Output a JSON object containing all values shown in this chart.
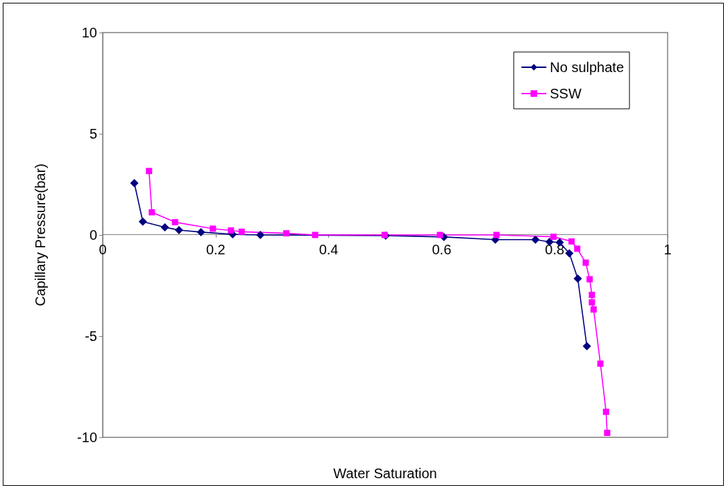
{
  "chart_data": {
    "type": "line",
    "xlabel": "Water Saturation",
    "ylabel": "Capillary Pressure(bar)",
    "xlim": [
      0,
      1
    ],
    "xticks": [
      0,
      0.2,
      0.4,
      0.6,
      0.8,
      1
    ],
    "ylim": [
      -10,
      10
    ],
    "yticks": [
      -10,
      -5,
      0,
      5,
      10
    ],
    "grid": false,
    "legend": "top right",
    "series": [
      {
        "name": "No sulphate",
        "color": "#000080",
        "marker": "diamond",
        "x": [
          0.056,
          0.071,
          0.11,
          0.135,
          0.174,
          0.23,
          0.279,
          0.501,
          0.604,
          0.695,
          0.766,
          0.791,
          0.809,
          0.826,
          0.841,
          0.857
        ],
        "values": [
          2.56,
          0.66,
          0.38,
          0.24,
          0.14,
          0.03,
          0,
          -0.03,
          -0.1,
          -0.23,
          -0.23,
          -0.34,
          -0.37,
          -0.91,
          -2.16,
          -5.5
        ]
      },
      {
        "name": "SSW",
        "color": "#ff00ff",
        "marker": "square",
        "x": [
          0.082,
          0.087,
          0.128,
          0.195,
          0.227,
          0.246,
          0.325,
          0.376,
          0.499,
          0.597,
          0.697,
          0.798,
          0.83,
          0.84,
          0.855,
          0.862,
          0.866,
          0.866,
          0.869,
          0.881,
          0.891,
          0.893
        ],
        "values": [
          3.16,
          1.12,
          0.63,
          0.31,
          0.22,
          0.16,
          0.08,
          0,
          0,
          0,
          0,
          -0.09,
          -0.32,
          -0.68,
          -1.37,
          -2.19,
          -2.96,
          -3.33,
          -3.68,
          -6.36,
          -8.74,
          -9.78
        ]
      }
    ]
  }
}
